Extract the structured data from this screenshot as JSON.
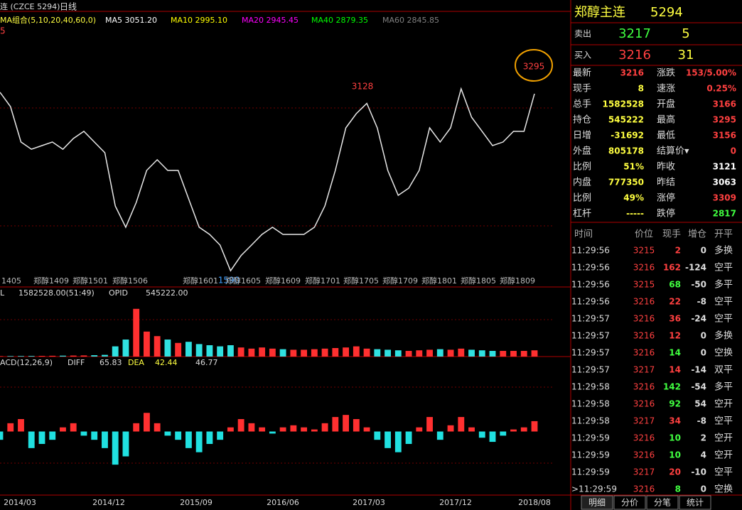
{
  "chart": {
    "symbol": "连 (CZCE 5294)",
    "period": "日线",
    "ma_label": "MA组合(5,10,20,40,60,0)",
    "ma": [
      {
        "text": "MA5 3051.20",
        "color": "#ffffff"
      },
      {
        "text": "MA10 2995.10",
        "color": "#ffff00"
      },
      {
        "text": "MA20 2945.45",
        "color": "#ff00ff"
      },
      {
        "text": "MA40 2879.35",
        "color": "#00ff00"
      },
      {
        "text": "MA60 2845.85",
        "color": "#808080"
      }
    ],
    "axis_fragment": "5",
    "price_marks": {
      "high": "3295",
      "peak": "3128",
      "low": "1590"
    },
    "contracts": [
      "1405",
      "郑醇1409",
      "郑醇1501",
      "郑醇1506",
      "郑醇1601",
      "郑醇1605",
      "郑醇1609",
      "郑醇1701",
      "郑醇1705",
      "郑醇1709",
      "郑醇1801",
      "郑醇1805",
      "郑醇1809"
    ],
    "price": {
      "ylim": [
        1500,
        3980
      ],
      "values": [
        3230,
        3099,
        2773,
        2707,
        2740,
        2773,
        2707,
        2805,
        2871,
        2773,
        2675,
        2185,
        1990,
        2218,
        2512,
        2610,
        2512,
        2512,
        2251,
        1990,
        1924,
        1826,
        1590,
        1729,
        1826,
        1924,
        1990,
        1924,
        1924,
        1924,
        1990,
        2185,
        2512,
        2903,
        3034,
        3128,
        2903,
        2512,
        2283,
        2349,
        2512,
        2903,
        2773,
        2903,
        3262,
        3001,
        2871,
        2740,
        2773,
        2871,
        2871,
        3216
      ]
    },
    "volume": {
      "header": [
        "L",
        "1582528.00(51:49)",
        "OPID",
        "545222.00"
      ],
      "ylim": [
        0,
        5000000
      ],
      "values": [
        40000,
        45000,
        50000,
        55000,
        60000,
        70000,
        80000,
        90000,
        100000,
        120000,
        150000,
        900000,
        1500000,
        4200000,
        2200000,
        1800000,
        1500000,
        1200000,
        1300000,
        1100000,
        1000000,
        900000,
        1000000,
        800000,
        700000,
        800000,
        700000,
        650000,
        600000,
        600000,
        650000,
        700000,
        750000,
        800000,
        900000,
        700000,
        650000,
        600000,
        550000,
        500000,
        550000,
        600000,
        650000,
        600000,
        700000,
        600000,
        550000,
        500000,
        500000,
        500000,
        500000,
        550000
      ]
    },
    "macd": {
      "header": [
        "ACD(12,26,9)",
        "DIFF",
        "65.83",
        "DEA",
        "42.44",
        "46.77"
      ],
      "ylim": [
        -150,
        150
      ],
      "values": [
        -20,
        20,
        30,
        -40,
        -30,
        -20,
        10,
        20,
        -10,
        -20,
        -40,
        -80,
        -60,
        20,
        45,
        20,
        -10,
        -20,
        -40,
        -50,
        -30,
        -20,
        10,
        30,
        20,
        10,
        -5,
        10,
        15,
        10,
        5,
        20,
        35,
        40,
        30,
        10,
        -20,
        -40,
        -50,
        -30,
        10,
        35,
        -20,
        15,
        35,
        10,
        -15,
        -25,
        -10,
        5,
        10,
        25
      ]
    },
    "dates": [
      "2014/03",
      "2014/12",
      "2015/09",
      "2016/06",
      "2017/03",
      "2017/12",
      "2018/08"
    ]
  },
  "quote": {
    "title": "郑醇主连",
    "code": "5294",
    "sell": {
      "label": "卖出",
      "price": "3217",
      "qty": "5"
    },
    "buy": {
      "label": "买入",
      "price": "3216",
      "qty": "31"
    },
    "stats": [
      [
        {
          "label": "最新",
          "value": "3216",
          "color": "#ff4040"
        },
        {
          "label": "涨跌",
          "value": "153/5.00%",
          "color": "#ff4040"
        }
      ],
      [
        {
          "label": "现手",
          "value": "8",
          "color": "#ffff40"
        },
        {
          "label": "速涨",
          "value": "0.25%",
          "color": "#ff4040"
        }
      ],
      [
        {
          "label": "总手",
          "value": "1582528",
          "color": "#ffff40"
        },
        {
          "label": "开盘",
          "value": "3166",
          "color": "#ff4040"
        }
      ],
      [
        {
          "label": "持仓",
          "value": "545222",
          "color": "#ffff40"
        },
        {
          "label": "最高",
          "value": "3295",
          "color": "#ff4040"
        }
      ],
      [
        {
          "label": "日增",
          "value": "-31692",
          "color": "#ffff40"
        },
        {
          "label": "最低",
          "value": "3156",
          "color": "#ff4040"
        }
      ],
      [
        {
          "label": "外盘",
          "value": "805178",
          "color": "#ffff40"
        },
        {
          "label": "结算价▾",
          "value": "0",
          "color": "#ff4040"
        }
      ],
      [
        {
          "label": "比例",
          "value": "51%",
          "color": "#ffff40"
        },
        {
          "label": "昨收",
          "value": "3121",
          "color": "#ffffff"
        }
      ],
      [
        {
          "label": "内盘",
          "value": "777350",
          "color": "#ffff40"
        },
        {
          "label": "昨结",
          "value": "3063",
          "color": "#ffffff"
        }
      ],
      [
        {
          "label": "比例",
          "value": "49%",
          "color": "#ffff40"
        },
        {
          "label": "涨停",
          "value": "3309",
          "color": "#ff4040"
        }
      ],
      [
        {
          "label": "杠杆",
          "value": "-----",
          "color": "#ffff40"
        },
        {
          "label": "跌停",
          "value": "2817",
          "color": "#40ff40"
        }
      ]
    ]
  },
  "trades": {
    "header": [
      "时间",
      "价位",
      "现手",
      "增仓",
      "开平"
    ],
    "rows": [
      {
        "time": "11:29:56",
        "price": "3215",
        "qty": "2",
        "oi": "0",
        "type": "多换",
        "color": "#ff4040"
      },
      {
        "time": "11:29:56",
        "price": "3216",
        "qty": "162",
        "oi": "-124",
        "type": "空平",
        "color": "#ff4040"
      },
      {
        "time": "11:29:56",
        "price": "3215",
        "qty": "68",
        "oi": "-50",
        "type": "多平",
        "color": "#40ff40"
      },
      {
        "time": "11:29:56",
        "price": "3216",
        "qty": "22",
        "oi": "-8",
        "type": "空平",
        "color": "#ff4040"
      },
      {
        "time": "11:29:57",
        "price": "3216",
        "qty": "36",
        "oi": "-24",
        "type": "空平",
        "color": "#ff4040"
      },
      {
        "time": "11:29:57",
        "price": "3216",
        "qty": "12",
        "oi": "0",
        "type": "多换",
        "color": "#ff4040"
      },
      {
        "time": "11:29:57",
        "price": "3216",
        "qty": "14",
        "oi": "0",
        "type": "空换",
        "color": "#40ff40"
      },
      {
        "time": "11:29:57",
        "price": "3217",
        "qty": "14",
        "oi": "-14",
        "type": "双平",
        "color": "#ff4040"
      },
      {
        "time": "11:29:58",
        "price": "3216",
        "qty": "142",
        "oi": "-54",
        "type": "多平",
        "color": "#40ff40"
      },
      {
        "time": "11:29:58",
        "price": "3216",
        "qty": "92",
        "oi": "54",
        "type": "空开",
        "color": "#40ff40"
      },
      {
        "time": "11:29:58",
        "price": "3217",
        "qty": "34",
        "oi": "-8",
        "type": "空平",
        "color": "#ff4040"
      },
      {
        "time": "11:29:59",
        "price": "3216",
        "qty": "10",
        "oi": "2",
        "type": "空开",
        "color": "#40ff40"
      },
      {
        "time": "11:29:59",
        "price": "3216",
        "qty": "10",
        "oi": "4",
        "type": "空开",
        "color": "#40ff40"
      },
      {
        "time": "11:29:59",
        "price": "3217",
        "qty": "20",
        "oi": "-10",
        "type": "空平",
        "color": "#ff4040"
      },
      {
        "time": ">11:29:59",
        "price": "3216",
        "qty": "8",
        "oi": "0",
        "type": "空换",
        "color": "#40ff40"
      }
    ]
  },
  "tabs": [
    "明细",
    "分价",
    "分笔",
    "统计"
  ]
}
